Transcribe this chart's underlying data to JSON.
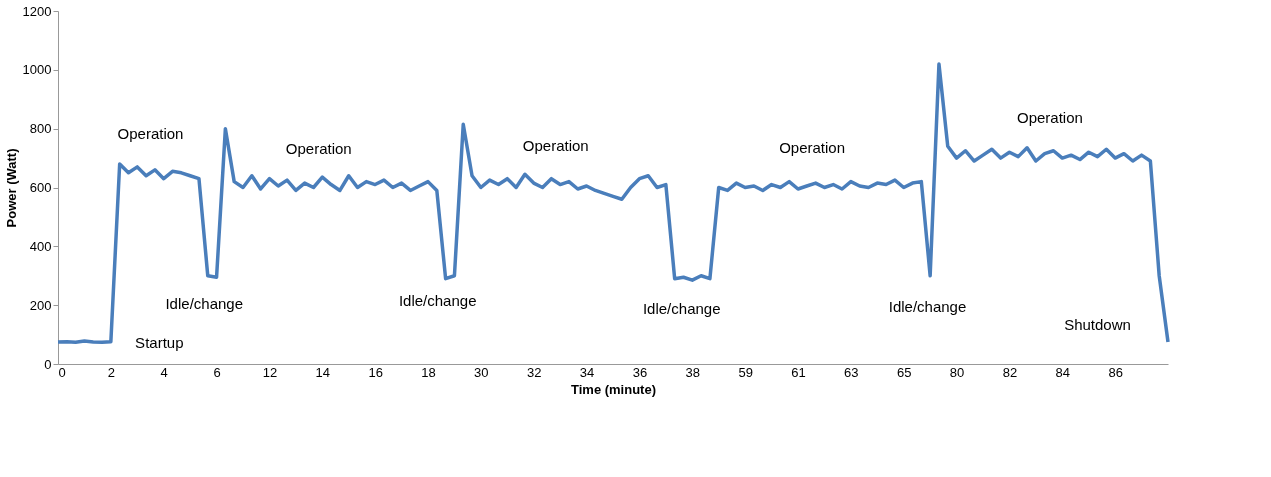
{
  "chart_data": {
    "type": "line",
    "xlabel": "Time (minute)",
    "ylabel": "Power (Watt)",
    "categories": [
      "0",
      null,
      null,
      null,
      null,
      null,
      "2",
      null,
      null,
      null,
      null,
      null,
      "4",
      null,
      null,
      null,
      null,
      null,
      "6",
      null,
      null,
      null,
      null,
      null,
      "12",
      null,
      null,
      null,
      null,
      null,
      "14",
      null,
      null,
      null,
      null,
      null,
      "16",
      null,
      null,
      null,
      null,
      null,
      "18",
      null,
      null,
      null,
      null,
      null,
      "30",
      null,
      null,
      null,
      null,
      null,
      "32",
      null,
      null,
      null,
      null,
      null,
      "34",
      null,
      null,
      null,
      null,
      null,
      "36",
      null,
      null,
      null,
      null,
      null,
      "38",
      null,
      null,
      null,
      null,
      null,
      "59",
      null,
      null,
      null,
      null,
      null,
      "61",
      null,
      null,
      null,
      null,
      null,
      "63",
      null,
      null,
      null,
      null,
      null,
      "65",
      null,
      null,
      null,
      null,
      null,
      "80",
      null,
      null,
      null,
      null,
      null,
      "82",
      null,
      null,
      null,
      null,
      null,
      "84",
      null,
      null,
      null,
      null,
      null,
      "86",
      null,
      null,
      null,
      null,
      null,
      null
    ],
    "series": [
      {
        "color": "#4a7ebb",
        "values": [
          75,
          76,
          74,
          78,
          75,
          74,
          76,
          680,
          650,
          670,
          640,
          660,
          630,
          655,
          650,
          640,
          630,
          300,
          295,
          800,
          620,
          600,
          640,
          595,
          630,
          605,
          625,
          590,
          615,
          600,
          635,
          610,
          590,
          640,
          600,
          620,
          610,
          625,
          600,
          615,
          590,
          605,
          620,
          590,
          290,
          300,
          815,
          640,
          600,
          625,
          610,
          630,
          600,
          645,
          615,
          600,
          630,
          610,
          620,
          595,
          605,
          590,
          580,
          570,
          560,
          600,
          630,
          640,
          600,
          610,
          290,
          295,
          285,
          300,
          290,
          600,
          590,
          615,
          600,
          605,
          590,
          610,
          600,
          620,
          595,
          605,
          615,
          600,
          610,
          595,
          620,
          605,
          600,
          615,
          610,
          625,
          600,
          615,
          620,
          300,
          1020,
          740,
          700,
          725,
          690,
          710,
          730,
          700,
          720,
          705,
          735,
          690,
          715,
          725,
          700,
          710,
          695,
          720,
          705,
          730,
          700,
          715,
          690,
          710,
          690,
          300,
          75
        ]
      }
    ],
    "ylim": [
      0,
      1200
    ],
    "yticks": [
      0,
      200,
      400,
      600,
      800,
      1000,
      1200
    ],
    "grid": false,
    "marker": "none",
    "line_style": "solid",
    "annotations": [
      "Operation",
      "Operation",
      "Operation",
      "Operation",
      "Operation",
      "Idle/change",
      "Idle/change",
      "Idle/change",
      "Idle/change",
      "Startup",
      "Shutdown"
    ]
  }
}
